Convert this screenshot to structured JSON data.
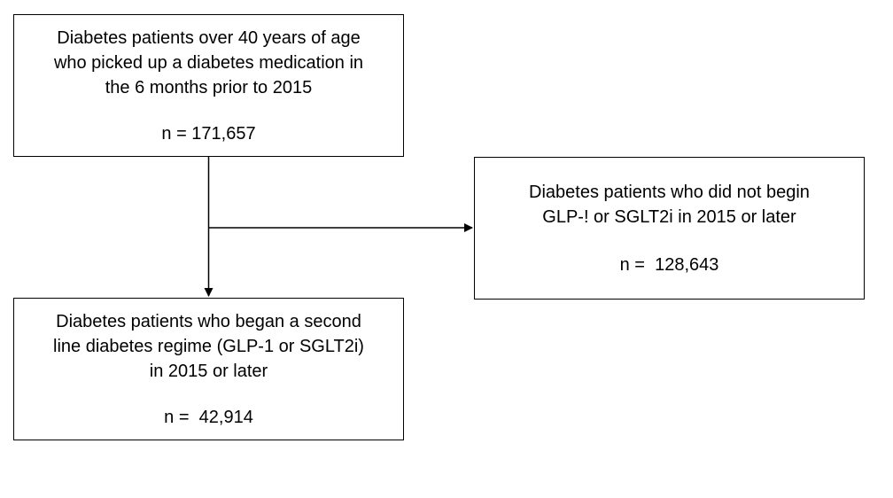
{
  "nodes": {
    "top": {
      "description": "Diabetes patients over 40 years of age\nwho picked up a diabetes medication in\nthe 6 months prior to 2015",
      "count": "n = 171,657"
    },
    "bottom": {
      "description": "Diabetes patients who began a second\nline diabetes regime (GLP-1 or SGLT2i)\nin 2015 or later",
      "count": "n =  42,914"
    },
    "right": {
      "description": "Diabetes patients who did not begin\nGLP-! or SGLT2i in 2015 or later",
      "count": "n =  128,643"
    }
  },
  "edges": [
    {
      "from": "top",
      "to": "bottom"
    },
    {
      "from": "top",
      "to": "right"
    }
  ],
  "colors": {
    "stroke": "#000000",
    "background": "#ffffff",
    "text": "#000000"
  }
}
